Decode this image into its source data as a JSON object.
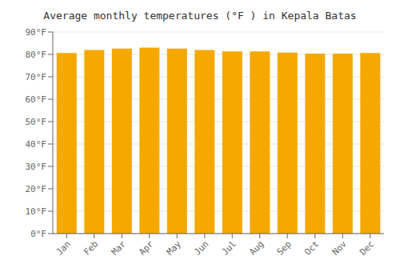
{
  "chart_data": {
    "type": "bar",
    "title": "Average monthly temperatures (°F ) in Kepala Batas",
    "categories": [
      "Jan",
      "Feb",
      "Mar",
      "Apr",
      "May",
      "Jun",
      "Jul",
      "Aug",
      "Sep",
      "Oct",
      "Nov",
      "Dec"
    ],
    "values": [
      80.6,
      82.0,
      82.6,
      83.0,
      82.6,
      82.0,
      81.3,
      81.3,
      80.8,
      80.4,
      80.4,
      80.6
    ],
    "color": "#F5A800",
    "ylim": [
      0,
      90
    ],
    "yticks": [
      {
        "value": 0,
        "label": "0°F"
      },
      {
        "value": 10,
        "label": "10°F"
      },
      {
        "value": 20,
        "label": "20°F"
      },
      {
        "value": 30,
        "label": "30°F"
      },
      {
        "value": 40,
        "label": "40°F"
      },
      {
        "value": 50,
        "label": "50°F"
      },
      {
        "value": 60,
        "label": "60°F"
      },
      {
        "value": 70,
        "label": "70°F"
      },
      {
        "value": 80,
        "label": "80°F"
      },
      {
        "value": 90,
        "label": "90°F"
      }
    ],
    "grid": true
  }
}
